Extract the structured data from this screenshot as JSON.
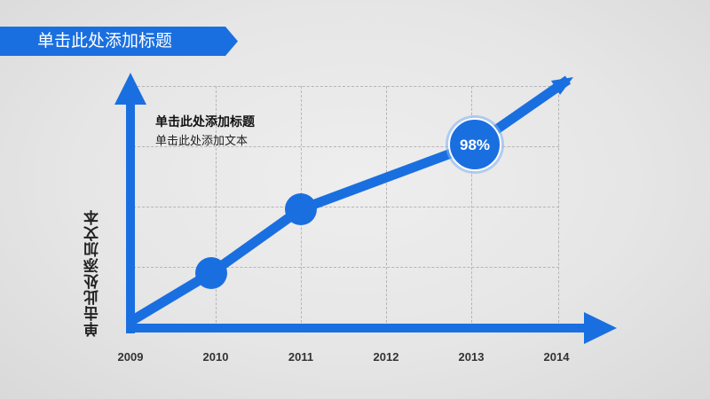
{
  "header": {
    "title": "单击此处添加标题"
  },
  "note": {
    "title": "单击此处添加标题",
    "text": "单击此处添加文本"
  },
  "colors": {
    "accent": "#1a6fe0",
    "badge_fill": "#1a6fe0",
    "badge_ring": "#7fb0f2"
  },
  "chart_data": {
    "type": "line",
    "x": [
      "2009",
      "2010",
      "2011",
      "2012",
      "2013",
      "2014"
    ],
    "ylabel": "单击此处添加文本",
    "markers": [
      "2010",
      "2011",
      "2013"
    ],
    "highlight": {
      "x": "2013",
      "label": "98%"
    },
    "grid": true
  }
}
